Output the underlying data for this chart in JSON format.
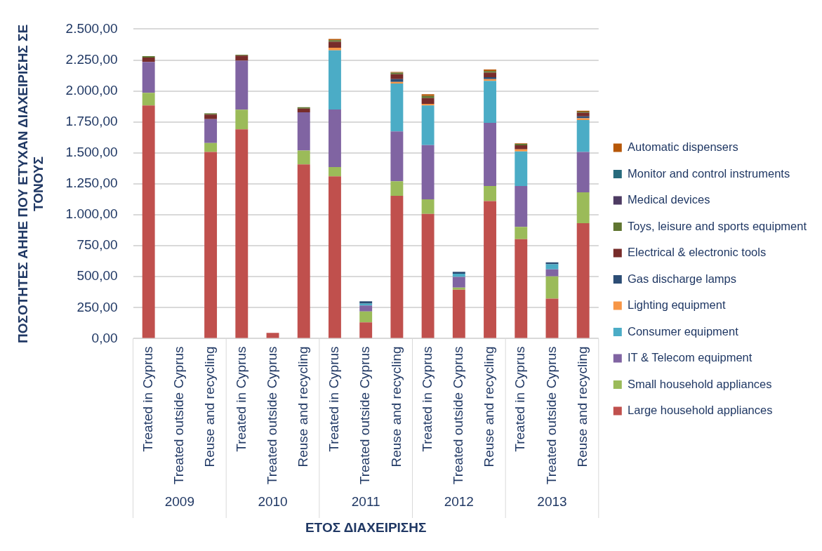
{
  "chart_data": {
    "type": "bar",
    "stacked": true,
    "xlabel": "ΕΤΟΣ ΔΙΑΧΕΙΡΙΣΗΣ",
    "ylabel": "ΠΟΣΟΤΗΤΕΣ ΑΗΗΕ ΠΟΥ ΕΤΥΧΑΝ ΔΙΑΧΕΙΡΙΣΗΣ ΣΕ ΤΟΝΟΥΣ",
    "categories": [
      "Treated in Cyprus",
      "Treated outside Cyprus",
      "Reuse and recycling",
      "Treated in Cyprus",
      "Treated outside Cyprus",
      "Reuse and recycling",
      "Treated in Cyprus",
      "Treated outside Cyprus",
      "Reuse and recycling",
      "Treated in Cyprus",
      "Treated outside Cyprus",
      "Reuse and recycling",
      "Treated in Cyprus",
      "Treated outside Cyprus",
      "Reuse and recycling"
    ],
    "annotations": [
      "2009",
      "2010",
      "2011",
      "2012",
      "2013"
    ],
    "ylim": [
      0,
      2500
    ],
    "yticks": [
      {
        "value": 0,
        "label": "0,00"
      },
      {
        "value": 250,
        "label": "250,00"
      },
      {
        "value": 500,
        "label": "500,00"
      },
      {
        "value": 750,
        "label": "750,00"
      },
      {
        "value": 1000,
        "label": "1.000,00"
      },
      {
        "value": 1250,
        "label": "1.250,00"
      },
      {
        "value": 1500,
        "label": "1.500,00"
      },
      {
        "value": 1750,
        "label": "1.750,00"
      },
      {
        "value": 2000,
        "label": "2.000,00"
      },
      {
        "value": 2250,
        "label": "2.250,00"
      },
      {
        "value": 2500,
        "label": "2.500,00"
      }
    ],
    "grid": "y",
    "legend": "right",
    "series": [
      {
        "name": "Large household appliances",
        "color": "#c0504d",
        "values": [
          1883,
          0,
          1508,
          1690,
          47,
          1407,
          1310,
          131,
          1153,
          1007,
          395,
          1110,
          803,
          322,
          932
        ]
      },
      {
        "name": "Small household appliances",
        "color": "#9bbb59",
        "values": [
          102,
          0,
          71,
          159,
          0,
          112,
          75,
          88,
          118,
          118,
          17,
          123,
          99,
          180,
          249
        ]
      },
      {
        "name": "IT & Telecom equipment",
        "color": "#8064a2",
        "values": [
          249,
          0,
          193,
          395,
          0,
          309,
          466,
          49,
          402,
          438,
          86,
          509,
          331,
          57,
          327
        ]
      },
      {
        "name": "Consumer equipment",
        "color": "#4bacc6",
        "values": [
          0,
          0,
          0,
          0,
          0,
          0,
          477,
          15,
          387,
          320,
          26,
          339,
          279,
          42,
          257
        ]
      },
      {
        "name": "Lighting equipment",
        "color": "#f79646",
        "values": [
          0,
          0,
          0,
          0,
          0,
          0,
          21,
          0,
          13,
          13,
          0,
          15,
          17,
          0,
          15
        ]
      },
      {
        "name": "Gas discharge lamps",
        "color": "#2c4d75",
        "values": [
          0,
          0,
          0,
          0,
          0,
          0,
          0,
          18,
          23,
          0,
          15,
          15,
          0,
          15,
          15
        ]
      },
      {
        "name": "Electrical & electronic tools",
        "color": "#772c2a",
        "values": [
          36,
          0,
          37,
          41,
          0,
          30,
          48,
          0,
          39,
          47,
          0,
          37,
          32,
          0,
          30
        ]
      },
      {
        "name": "Toys, leisure and sports equipment",
        "color": "#5f7530",
        "values": [
          11,
          0,
          10,
          7,
          0,
          11,
          13,
          0,
          13,
          16,
          0,
          13,
          11,
          0,
          9
        ]
      },
      {
        "name": "Medical devices",
        "color": "#4d3b62",
        "values": [
          0,
          0,
          0,
          0,
          0,
          0,
          0,
          0,
          0,
          0,
          0,
          0,
          0,
          0,
          0
        ]
      },
      {
        "name": "Monitor and control instruments",
        "color": "#276a7c",
        "values": [
          0,
          0,
          0,
          0,
          0,
          0,
          0,
          0,
          0,
          0,
          0,
          0,
          0,
          0,
          0
        ]
      },
      {
        "name": "Automatic dispensers",
        "color": "#b65708",
        "values": [
          0,
          0,
          0,
          0,
          0,
          0,
          10,
          0,
          6,
          15,
          0,
          12,
          5,
          0,
          6
        ]
      }
    ]
  }
}
